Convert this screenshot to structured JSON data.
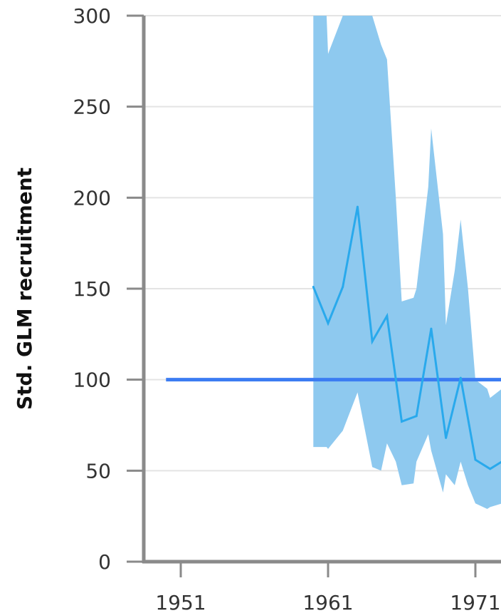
{
  "chart_data": {
    "type": "area",
    "ylabel": "Std. GLM recruitment",
    "xlabel": "",
    "title": "",
    "ylim": [
      0,
      300
    ],
    "yticks": [
      0,
      50,
      100,
      150,
      200,
      250,
      300
    ],
    "xticks": [
      1951,
      1961,
      1971
    ],
    "xlim": [
      1948.0,
      1973.5
    ],
    "grid": "horizontal",
    "reference_line": {
      "y": 100,
      "x_start": 1950,
      "color": "#3b7cf2"
    },
    "series": [
      {
        "kind": "line",
        "color": "#29a9ec",
        "x": [
          1960,
          1961,
          1962,
          1963,
          1964,
          1965,
          1966,
          1967,
          1968,
          1969,
          1970,
          1971,
          1972,
          1973
        ],
        "values": [
          151,
          131,
          151,
          195,
          121,
          135,
          77,
          80,
          128,
          68,
          101,
          56,
          51,
          56
        ]
      },
      {
        "kind": "band",
        "color": "#8ec9ef",
        "x": [
          1960,
          1960.9,
          1961,
          1962,
          1963,
          1964,
          1964.6,
          1965,
          1965.6,
          1966,
          1966.8,
          1967,
          1967.8,
          1968,
          1968.8,
          1969,
          1969.6,
          1970,
          1970.5,
          1971,
          1971.8,
          1972,
          1972.8,
          1973
        ],
        "upper": [
          300,
          300,
          279,
          300,
          300,
          300,
          284,
          276,
          200,
          143,
          145,
          150,
          206,
          238,
          180,
          130,
          160,
          188,
          150,
          100,
          95,
          90,
          95,
          100
        ],
        "lower": [
          63,
          63,
          62,
          72,
          93,
          52,
          50,
          65,
          55,
          42,
          43,
          55,
          70,
          61,
          38,
          48,
          42,
          55,
          42,
          32,
          29,
          30,
          32,
          34
        ]
      }
    ]
  }
}
